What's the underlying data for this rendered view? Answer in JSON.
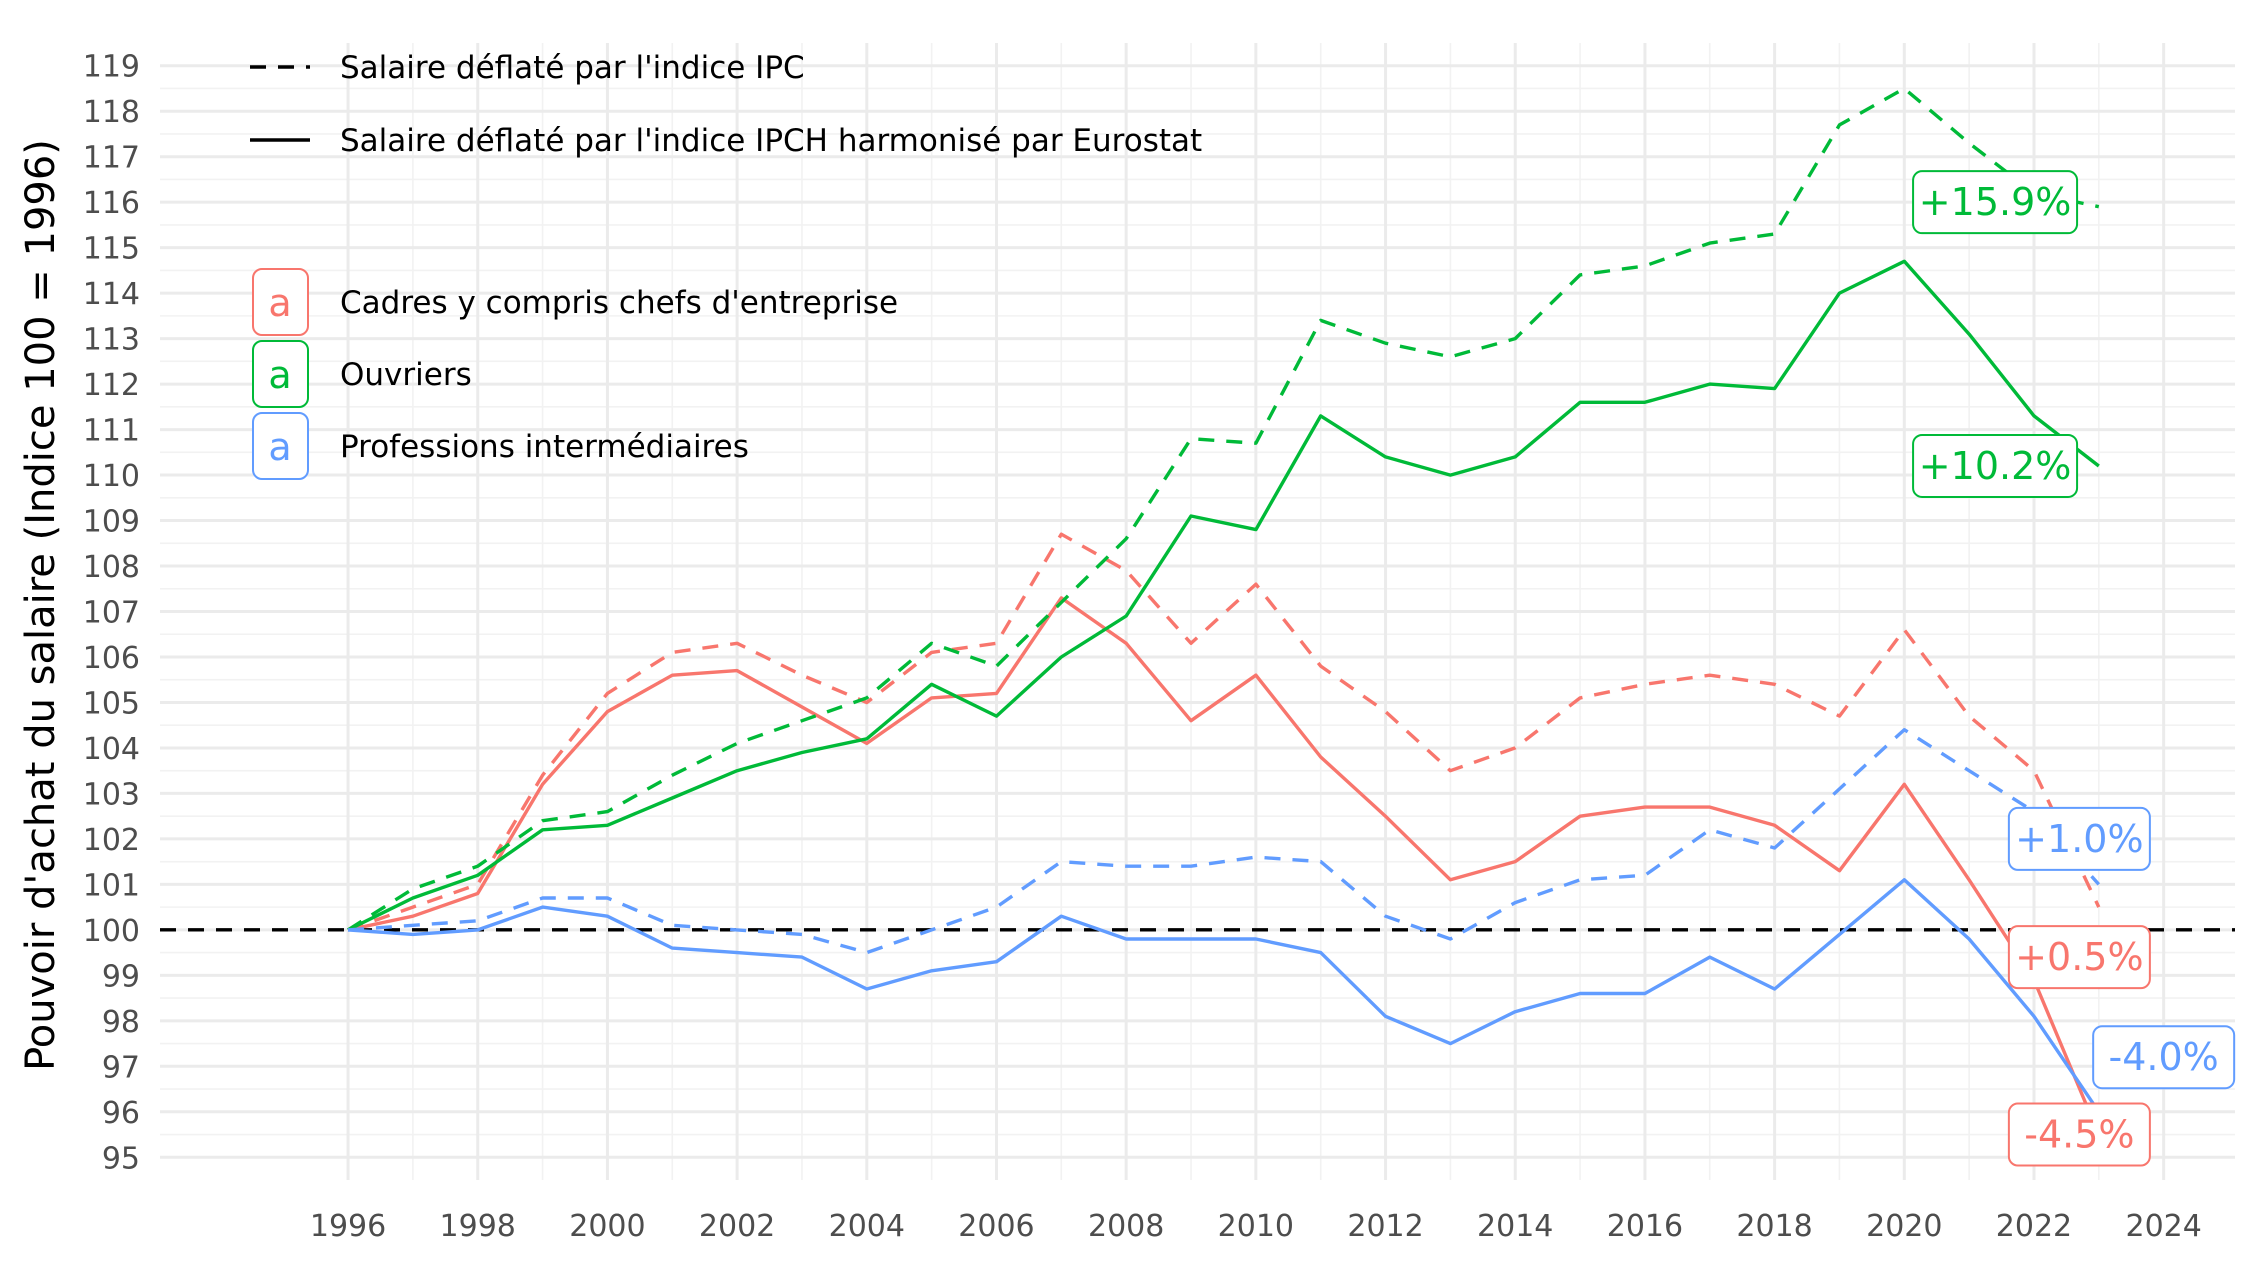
{
  "chart_data": {
    "type": "line",
    "title": "",
    "xlabel": "",
    "ylabel": "Pouvoir d'achat du salaire (Indice 100 = 1996)",
    "xlim": [
      1993.1,
      2025.1
    ],
    "ylim": [
      94.5,
      119.5
    ],
    "x_ticks": [
      1996,
      1998,
      2000,
      2002,
      2004,
      2006,
      2008,
      2010,
      2012,
      2014,
      2016,
      2018,
      2020,
      2022,
      2024
    ],
    "y_ticks": [
      95,
      96,
      97,
      98,
      99,
      100,
      101,
      102,
      103,
      104,
      105,
      106,
      107,
      108,
      109,
      110,
      111,
      112,
      113,
      114,
      115,
      116,
      117,
      118,
      119
    ],
    "grid": true,
    "reference_line": {
      "y": 100,
      "style": "dashed",
      "color": "#000000"
    },
    "x": [
      1996,
      1997,
      1998,
      1999,
      2000,
      2001,
      2002,
      2003,
      2004,
      2005,
      2006,
      2007,
      2008,
      2009,
      2010,
      2011,
      2012,
      2013,
      2014,
      2015,
      2016,
      2017,
      2018,
      2019,
      2020,
      2021,
      2022,
      2023
    ],
    "linetype_legend": [
      {
        "label": "Salaire déflaté par l'indice IPC",
        "dash": true
      },
      {
        "label": "Salaire déflaté par l'indice IPCH harmonisé par Eurostat",
        "dash": false
      }
    ],
    "color_legend": [
      {
        "label": "Cadres y compris chefs d'entreprise",
        "color": "#F8766D"
      },
      {
        "label": "Ouvriers",
        "color": "#00BA38"
      },
      {
        "label": "Professions intermédiaires",
        "color": "#619CFF"
      }
    ],
    "legend_position": "top-left",
    "series": [
      {
        "group": "Cadres y compris chefs d'entreprise",
        "deflator": "IPC",
        "dashed": true,
        "color": "#F8766D",
        "values": [
          100.0,
          100.5,
          101.0,
          103.4,
          105.2,
          106.1,
          106.3,
          105.6,
          105.0,
          106.1,
          106.3,
          108.7,
          107.9,
          106.3,
          107.6,
          105.8,
          104.8,
          103.5,
          104.0,
          105.1,
          105.4,
          105.6,
          105.4,
          104.7,
          106.6,
          104.7,
          103.5,
          100.5
        ]
      },
      {
        "group": "Cadres y compris chefs d'entreprise",
        "deflator": "IPCH",
        "dashed": false,
        "color": "#F8766D",
        "values": [
          100.0,
          100.3,
          100.8,
          103.2,
          104.8,
          105.6,
          105.7,
          104.9,
          104.1,
          105.1,
          105.2,
          107.3,
          106.3,
          104.6,
          105.6,
          103.8,
          102.5,
          101.1,
          101.5,
          102.5,
          102.7,
          102.7,
          102.3,
          101.3,
          103.2,
          101.1,
          98.9,
          95.5
        ]
      },
      {
        "group": "Ouvriers",
        "deflator": "IPC",
        "dashed": true,
        "color": "#00BA38",
        "values": [
          100.0,
          100.9,
          101.4,
          102.4,
          102.6,
          103.4,
          104.1,
          104.6,
          105.1,
          106.3,
          105.8,
          107.2,
          108.6,
          110.8,
          110.7,
          113.4,
          112.9,
          112.6,
          113.0,
          114.4,
          114.6,
          115.1,
          115.3,
          117.7,
          118.5,
          117.3,
          116.2,
          115.9
        ]
      },
      {
        "group": "Ouvriers",
        "deflator": "IPCH",
        "dashed": false,
        "color": "#00BA38",
        "values": [
          100.0,
          100.7,
          101.2,
          102.2,
          102.3,
          102.9,
          103.5,
          103.9,
          104.2,
          105.4,
          104.7,
          106.0,
          106.9,
          109.1,
          108.8,
          111.3,
          110.4,
          110.0,
          110.4,
          111.6,
          111.6,
          112.0,
          111.9,
          114.0,
          114.7,
          113.1,
          111.3,
          110.2
        ]
      },
      {
        "group": "Professions intermédiaires",
        "deflator": "IPC",
        "dashed": true,
        "color": "#619CFF",
        "values": [
          100.0,
          100.1,
          100.2,
          100.7,
          100.7,
          100.1,
          100.0,
          99.9,
          99.5,
          100.0,
          100.5,
          101.5,
          101.4,
          101.4,
          101.6,
          101.5,
          100.3,
          99.8,
          100.6,
          101.1,
          101.2,
          102.2,
          101.8,
          103.1,
          104.4,
          103.5,
          102.6,
          101.0
        ]
      },
      {
        "group": "Professions intermédiaires",
        "deflator": "IPCH",
        "dashed": false,
        "color": "#619CFF",
        "values": [
          100.0,
          99.9,
          100.0,
          100.5,
          100.3,
          99.6,
          99.5,
          99.4,
          98.7,
          99.1,
          99.3,
          100.3,
          99.8,
          99.8,
          99.8,
          99.5,
          98.1,
          97.5,
          98.2,
          98.6,
          98.6,
          99.4,
          98.7,
          99.9,
          101.1,
          99.8,
          98.1,
          96.0
        ]
      }
    ],
    "end_labels": [
      {
        "text": "+15.9%",
        "color": "#00BA38",
        "x": 2021.4,
        "y": 116.0
      },
      {
        "text": "+10.2%",
        "color": "#00BA38",
        "x": 2021.4,
        "y": 110.2
      },
      {
        "text": "+1.0%",
        "color": "#619CFF",
        "x": 2022.7,
        "y": 102.0
      },
      {
        "text": "+0.5%",
        "color": "#F8766D",
        "x": 2022.7,
        "y": 99.4
      },
      {
        "text": "-4.0%",
        "color": "#619CFF",
        "x": 2024.0,
        "y": 97.2
      },
      {
        "text": "-4.5%",
        "color": "#F8766D",
        "x": 2022.7,
        "y": 95.5
      }
    ]
  }
}
